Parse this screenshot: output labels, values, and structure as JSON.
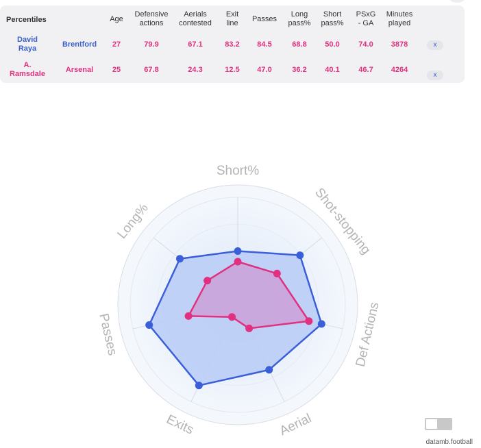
{
  "table": {
    "header": {
      "percentiles": "Percentiles",
      "columns": [
        "Age",
        "Defensive\nactions",
        "Aerials\ncontested",
        "Exit\nline",
        "Passes",
        "Long\npass%",
        "Short\npass%",
        "PSxG\n- GA",
        "Minutes\nplayed"
      ]
    },
    "rows": [
      {
        "player": "David\nRaya",
        "team": "Brentford",
        "values": [
          "27",
          "79.9",
          "67.1",
          "83.2",
          "84.5",
          "68.8",
          "50.0",
          "74.0",
          "3878"
        ],
        "remove": "x"
      },
      {
        "player": "A.\nRamsdale",
        "team": "Arsenal",
        "values": [
          "25",
          "67.8",
          "24.3",
          "12.5",
          "47.0",
          "36.2",
          "40.1",
          "46.7",
          "4264"
        ],
        "remove": "x"
      }
    ]
  },
  "chart_data": {
    "type": "radar",
    "axes": [
      "Short%",
      "Shot-stopping",
      "Def Actions",
      "Aerial",
      "Exits",
      "Passes",
      "Long%"
    ],
    "range": [
      0,
      100
    ],
    "series": [
      {
        "name": "David Raya",
        "color": "#3a5fd9",
        "fill": "#b8cbf7",
        "values": [
          50.0,
          74.0,
          79.9,
          67.1,
          83.2,
          84.5,
          68.8
        ]
      },
      {
        "name": "A. Ramsdale",
        "color": "#e0307f",
        "fill": "#cc9ed6",
        "values": [
          40.1,
          46.7,
          67.8,
          24.3,
          12.5,
          47.0,
          36.2
        ]
      }
    ]
  },
  "footer": {
    "credit": "datamb.football"
  },
  "colors": {
    "raya": "#3a5fc8",
    "ramsdale": "#e0307f",
    "panel": "#f1f1f3"
  }
}
